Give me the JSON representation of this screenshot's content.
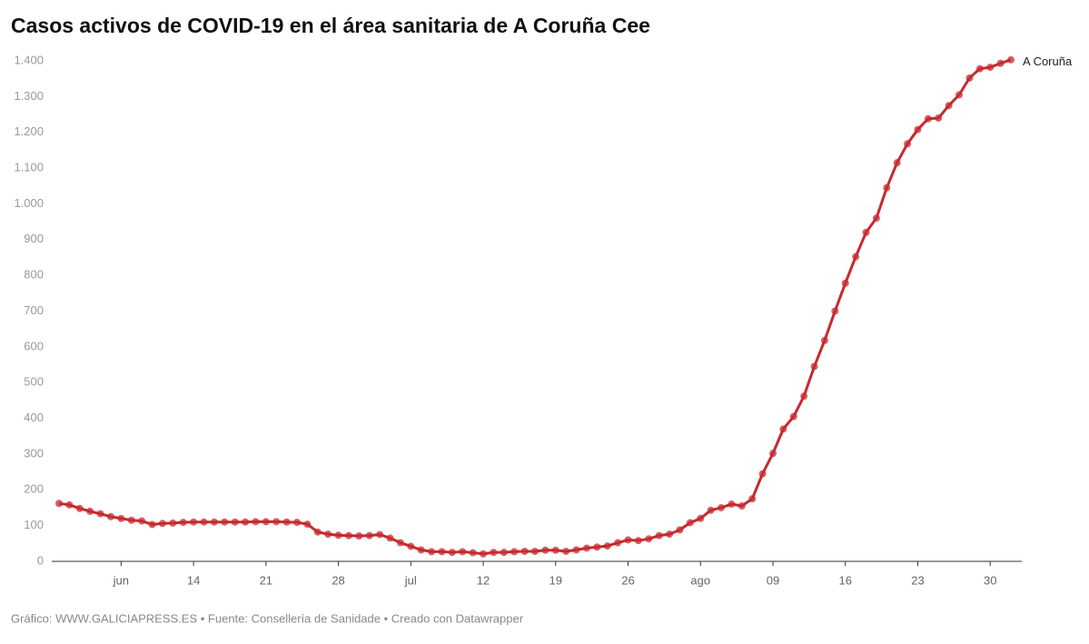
{
  "chart_data": {
    "type": "line",
    "title": "Casos activos de COVID-19 en el área sanitaria de A Coruña Cee",
    "source": "Gráfico: WWW.GALICIAPRESS.ES • Fuente: Consellería de Sanidade • Creado con Datawrapper",
    "x": [
      "06-01",
      "06-02",
      "06-03",
      "06-04",
      "06-05",
      "06-06",
      "06-07",
      "06-08",
      "06-09",
      "06-10",
      "06-11",
      "06-12",
      "06-13",
      "06-14",
      "06-15",
      "06-16",
      "06-17",
      "06-18",
      "06-19",
      "06-20",
      "06-21",
      "06-22",
      "06-23",
      "06-24",
      "06-25",
      "06-26",
      "06-27",
      "06-28",
      "06-29",
      "06-30",
      "07-01",
      "07-02",
      "07-03",
      "07-04",
      "07-05",
      "07-06",
      "07-07",
      "07-08",
      "07-09",
      "07-10",
      "07-11",
      "07-12",
      "07-13",
      "07-14",
      "07-15",
      "07-16",
      "07-17",
      "07-18",
      "07-19",
      "07-20",
      "07-21",
      "07-22",
      "07-23",
      "07-24",
      "07-25",
      "07-26",
      "07-27",
      "07-28",
      "07-29",
      "07-30",
      "07-31",
      "08-01",
      "08-02",
      "08-03",
      "08-04",
      "08-05",
      "08-06",
      "08-07",
      "08-08",
      "08-09",
      "08-10",
      "08-11",
      "08-12",
      "08-13",
      "08-14",
      "08-15",
      "08-16",
      "08-17",
      "08-18",
      "08-19",
      "08-20",
      "08-21",
      "08-22",
      "08-23",
      "08-24",
      "08-25",
      "08-26",
      "08-27",
      "08-28",
      "08-29",
      "08-30",
      "08-31",
      "09-01"
    ],
    "series": [
      {
        "name": "A Coruña",
        "color": "#c62a2f",
        "values": [
          162,
          158,
          148,
          140,
          133,
          125,
          120,
          115,
          113,
          103,
          106,
          107,
          109,
          110,
          110,
          110,
          110,
          110,
          110,
          111,
          111,
          111,
          110,
          109,
          104,
          82,
          76,
          73,
          72,
          71,
          72,
          75,
          65,
          52,
          42,
          32,
          27,
          27,
          25,
          27,
          24,
          21,
          25,
          25,
          27,
          28,
          28,
          31,
          31,
          28,
          32,
          37,
          40,
          43,
          52,
          60,
          58,
          63,
          72,
          76,
          88,
          108,
          120,
          143,
          150,
          160,
          155,
          175,
          245,
          302,
          370,
          405,
          462,
          545,
          618,
          700,
          778,
          852,
          920,
          960,
          1045,
          1115,
          1168,
          1208,
          1238,
          1240,
          1275,
          1305,
          1352,
          1378,
          1382,
          1393,
          1403
        ]
      }
    ],
    "xticks": [
      {
        "value": "06-07",
        "label": "jun"
      },
      {
        "value": "06-14",
        "label": "14"
      },
      {
        "value": "06-21",
        "label": "21"
      },
      {
        "value": "06-28",
        "label": "28"
      },
      {
        "value": "07-05",
        "label": "jul"
      },
      {
        "value": "07-12",
        "label": "12"
      },
      {
        "value": "07-19",
        "label": "19"
      },
      {
        "value": "07-26",
        "label": "26"
      },
      {
        "value": "08-02",
        "label": "ago"
      },
      {
        "value": "08-09",
        "label": "09"
      },
      {
        "value": "08-16",
        "label": "16"
      },
      {
        "value": "08-23",
        "label": "23"
      },
      {
        "value": "08-30",
        "label": "30"
      }
    ],
    "ylim": [
      0,
      1400
    ],
    "yticks": [
      0,
      100,
      200,
      300,
      400,
      500,
      600,
      700,
      800,
      900,
      {
        "value": 1000,
        "label": "1.000"
      },
      {
        "value": 1100,
        "label": "1.100"
      },
      {
        "value": 1200,
        "label": "1.200"
      },
      {
        "value": 1300,
        "label": "1.300"
      },
      {
        "value": 1400,
        "label": "1.400"
      }
    ],
    "grid": false
  }
}
